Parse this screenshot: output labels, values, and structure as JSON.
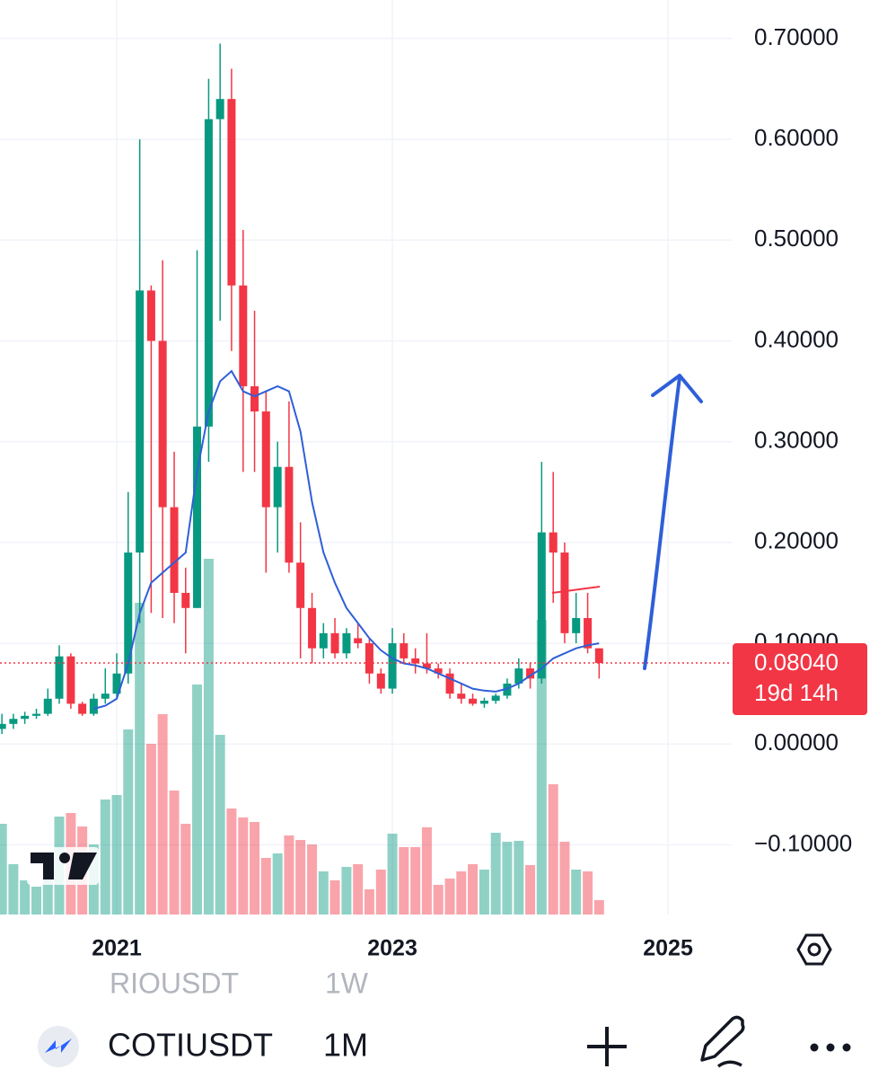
{
  "chart_data": {
    "type": "candlestick",
    "x": [
      2020.167,
      2020.25,
      2020.333,
      2020.417,
      2020.5,
      2020.583,
      2020.667,
      2020.75,
      2020.833,
      2020.917,
      2021.0,
      2021.083,
      2021.167,
      2021.25,
      2021.333,
      2021.417,
      2021.5,
      2021.583,
      2021.667,
      2021.75,
      2021.833,
      2021.917,
      2022.0,
      2022.083,
      2022.167,
      2022.25,
      2022.333,
      2022.417,
      2022.5,
      2022.583,
      2022.667,
      2022.75,
      2022.833,
      2022.917,
      2023.0,
      2023.083,
      2023.167,
      2023.25,
      2023.333,
      2023.417,
      2023.5,
      2023.583,
      2023.667,
      2023.75,
      2023.833,
      2023.917,
      2024.0,
      2024.083,
      2024.167,
      2024.25,
      2024.333,
      2024.417,
      2024.5
    ],
    "open": [
      0.015,
      0.02,
      0.025,
      0.028,
      0.03,
      0.045,
      0.087,
      0.04,
      0.03,
      0.045,
      0.05,
      0.07,
      0.19,
      0.45,
      0.4,
      0.235,
      0.15,
      0.135,
      0.315,
      0.62,
      0.64,
      0.455,
      0.355,
      0.33,
      0.235,
      0.275,
      0.18,
      0.135,
      0.095,
      0.11,
      0.09,
      0.105,
      0.1,
      0.07,
      0.055,
      0.1,
      0.085,
      0.08,
      0.075,
      0.07,
      0.05,
      0.045,
      0.04,
      0.043,
      0.048,
      0.06,
      0.075,
      0.065,
      0.21,
      0.19,
      0.11,
      0.125,
      0.095
    ],
    "high": [
      0.03,
      0.03,
      0.032,
      0.035,
      0.055,
      0.098,
      0.09,
      0.042,
      0.05,
      0.075,
      0.09,
      0.25,
      0.6,
      0.455,
      0.48,
      0.29,
      0.175,
      0.49,
      0.66,
      0.695,
      0.67,
      0.51,
      0.43,
      0.35,
      0.3,
      0.34,
      0.22,
      0.15,
      0.12,
      0.125,
      0.115,
      0.12,
      0.105,
      0.075,
      0.115,
      0.11,
      0.095,
      0.11,
      0.08,
      0.075,
      0.06,
      0.05,
      0.046,
      0.05,
      0.065,
      0.085,
      0.08,
      0.28,
      0.27,
      0.2,
      0.15,
      0.15,
      0.095
    ],
    "low": [
      0.01,
      0.015,
      0.02,
      0.025,
      0.028,
      0.04,
      0.035,
      0.028,
      0.028,
      0.04,
      0.045,
      0.06,
      0.12,
      0.13,
      0.125,
      0.12,
      0.09,
      0.135,
      0.28,
      0.42,
      0.39,
      0.27,
      0.27,
      0.17,
      0.19,
      0.17,
      0.085,
      0.08,
      0.085,
      0.085,
      0.085,
      0.095,
      0.06,
      0.05,
      0.05,
      0.08,
      0.07,
      0.07,
      0.065,
      0.045,
      0.04,
      0.038,
      0.036,
      0.04,
      0.045,
      0.055,
      0.055,
      0.06,
      0.14,
      0.1,
      0.1,
      0.09,
      0.065
    ],
    "close": [
      0.02,
      0.025,
      0.028,
      0.03,
      0.045,
      0.087,
      0.04,
      0.03,
      0.045,
      0.05,
      0.07,
      0.19,
      0.45,
      0.4,
      0.235,
      0.15,
      0.135,
      0.315,
      0.62,
      0.64,
      0.455,
      0.355,
      0.33,
      0.235,
      0.275,
      0.18,
      0.135,
      0.095,
      0.11,
      0.09,
      0.11,
      0.1,
      0.07,
      0.055,
      0.1,
      0.085,
      0.08,
      0.075,
      0.07,
      0.05,
      0.045,
      0.04,
      0.043,
      0.048,
      0.06,
      0.075,
      0.065,
      0.21,
      0.19,
      0.11,
      0.125,
      0.095,
      0.0804
    ],
    "volume": [
      101,
      56,
      38,
      31,
      50,
      109,
      113,
      98,
      78,
      128,
      133,
      206,
      347,
      190,
      223,
      138,
      101,
      256,
      396,
      200,
      118,
      108,
      103,
      63,
      68,
      88,
      83,
      78,
      48,
      38,
      53,
      56,
      28,
      50,
      90,
      75,
      75,
      97,
      33,
      40,
      48,
      56,
      50,
      91,
      81,
      82,
      55,
      328,
      145,
      81,
      50,
      48,
      16
    ],
    "up_color": "#089981",
    "down_color": "#f23645",
    "ma": {
      "color": "#2f5fd8",
      "values": [
        null,
        null,
        null,
        null,
        null,
        null,
        null,
        null,
        0.035,
        0.038,
        0.045,
        0.08,
        0.13,
        0.16,
        0.17,
        0.18,
        0.19,
        0.27,
        0.33,
        0.36,
        0.37,
        0.35,
        0.345,
        0.35,
        0.355,
        0.35,
        0.31,
        0.24,
        0.19,
        0.16,
        0.135,
        0.12,
        0.105,
        0.093,
        0.085,
        0.08,
        0.078,
        0.075,
        0.07,
        0.065,
        0.06,
        0.055,
        0.053,
        0.052,
        0.055,
        0.06,
        0.068,
        0.075,
        0.085,
        0.09,
        0.095,
        0.098,
        0.1
      ]
    },
    "last_price": {
      "value": 0.0804,
      "label": "0.08040"
    },
    "countdown": "19d 14h",
    "ylim": [
      -0.17,
      0.74
    ],
    "yticks": [
      {
        "value": 0.7,
        "label": "0.70000"
      },
      {
        "value": 0.6,
        "label": "0.60000"
      },
      {
        "value": 0.5,
        "label": "0.50000"
      },
      {
        "value": 0.4,
        "label": "0.40000"
      },
      {
        "value": 0.3,
        "label": "0.30000"
      },
      {
        "value": 0.2,
        "label": "0.20000"
      },
      {
        "value": 0.1,
        "label": "0.10000"
      },
      {
        "value": 0,
        "label": "0.00000"
      },
      {
        "value": -0.1,
        "label": "−0.10000"
      }
    ],
    "xlim": [
      2020.153,
      2025.462
    ],
    "xticks": [
      2021,
      2023,
      2025
    ],
    "grid": true
  },
  "toolbar": {
    "symbol": "COTIUSDT",
    "interval": "1M"
  },
  "ghost": {
    "symbol": "RIOUSDT",
    "interval": "1W"
  }
}
